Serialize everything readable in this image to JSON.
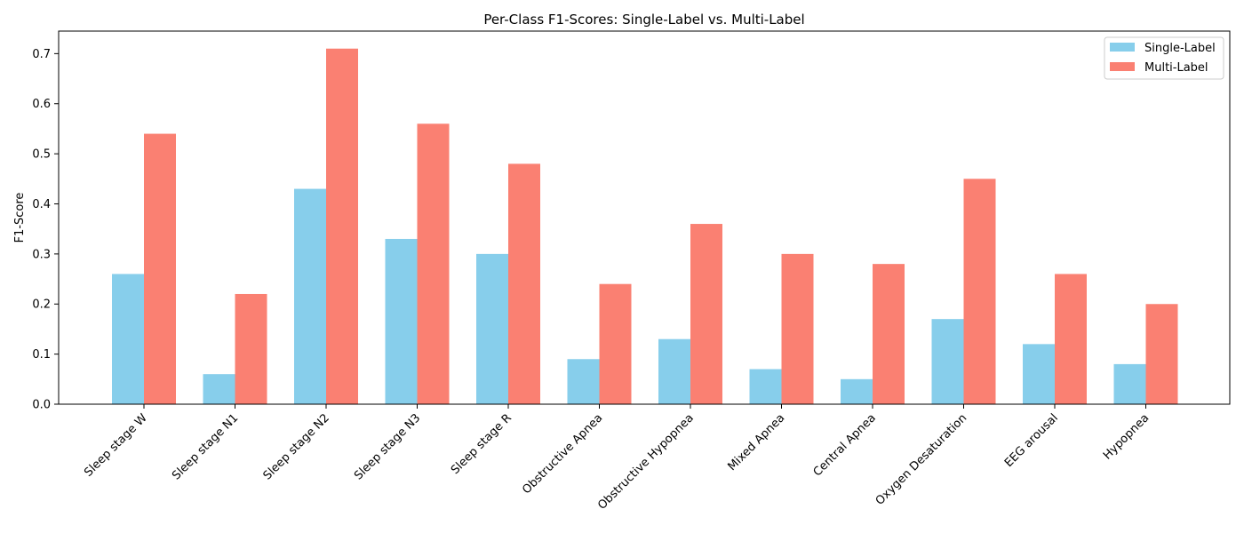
{
  "chart_data": {
    "type": "bar",
    "title": "Per-Class F1-Scores: Single-Label vs. Multi-Label",
    "xlabel": "",
    "ylabel": "F1-Score",
    "ylim": [
      0,
      0.745
    ],
    "yticks": [
      "0.0",
      "0.1",
      "0.2",
      "0.3",
      "0.4",
      "0.5",
      "0.6",
      "0.7"
    ],
    "grid": false,
    "legend_position": "top-right",
    "categories": [
      "Sleep stage W",
      "Sleep stage N1",
      "Sleep stage N2",
      "Sleep stage N3",
      "Sleep stage R",
      "Obstructive Apnea",
      "Obstructive Hypopnea",
      "Mixed Apnea",
      "Central Apnea",
      "Oxygen Desaturation",
      "EEG arousal",
      "Hypopnea"
    ],
    "series": [
      {
        "name": "Single-Label",
        "color": "#87ceeb",
        "values": [
          0.26,
          0.06,
          0.43,
          0.33,
          0.3,
          0.09,
          0.13,
          0.07,
          0.05,
          0.17,
          0.12,
          0.08
        ]
      },
      {
        "name": "Multi-Label",
        "color": "#fa8072",
        "values": [
          0.54,
          0.22,
          0.71,
          0.56,
          0.48,
          0.24,
          0.36,
          0.3,
          0.28,
          0.45,
          0.26,
          0.2
        ]
      }
    ]
  }
}
